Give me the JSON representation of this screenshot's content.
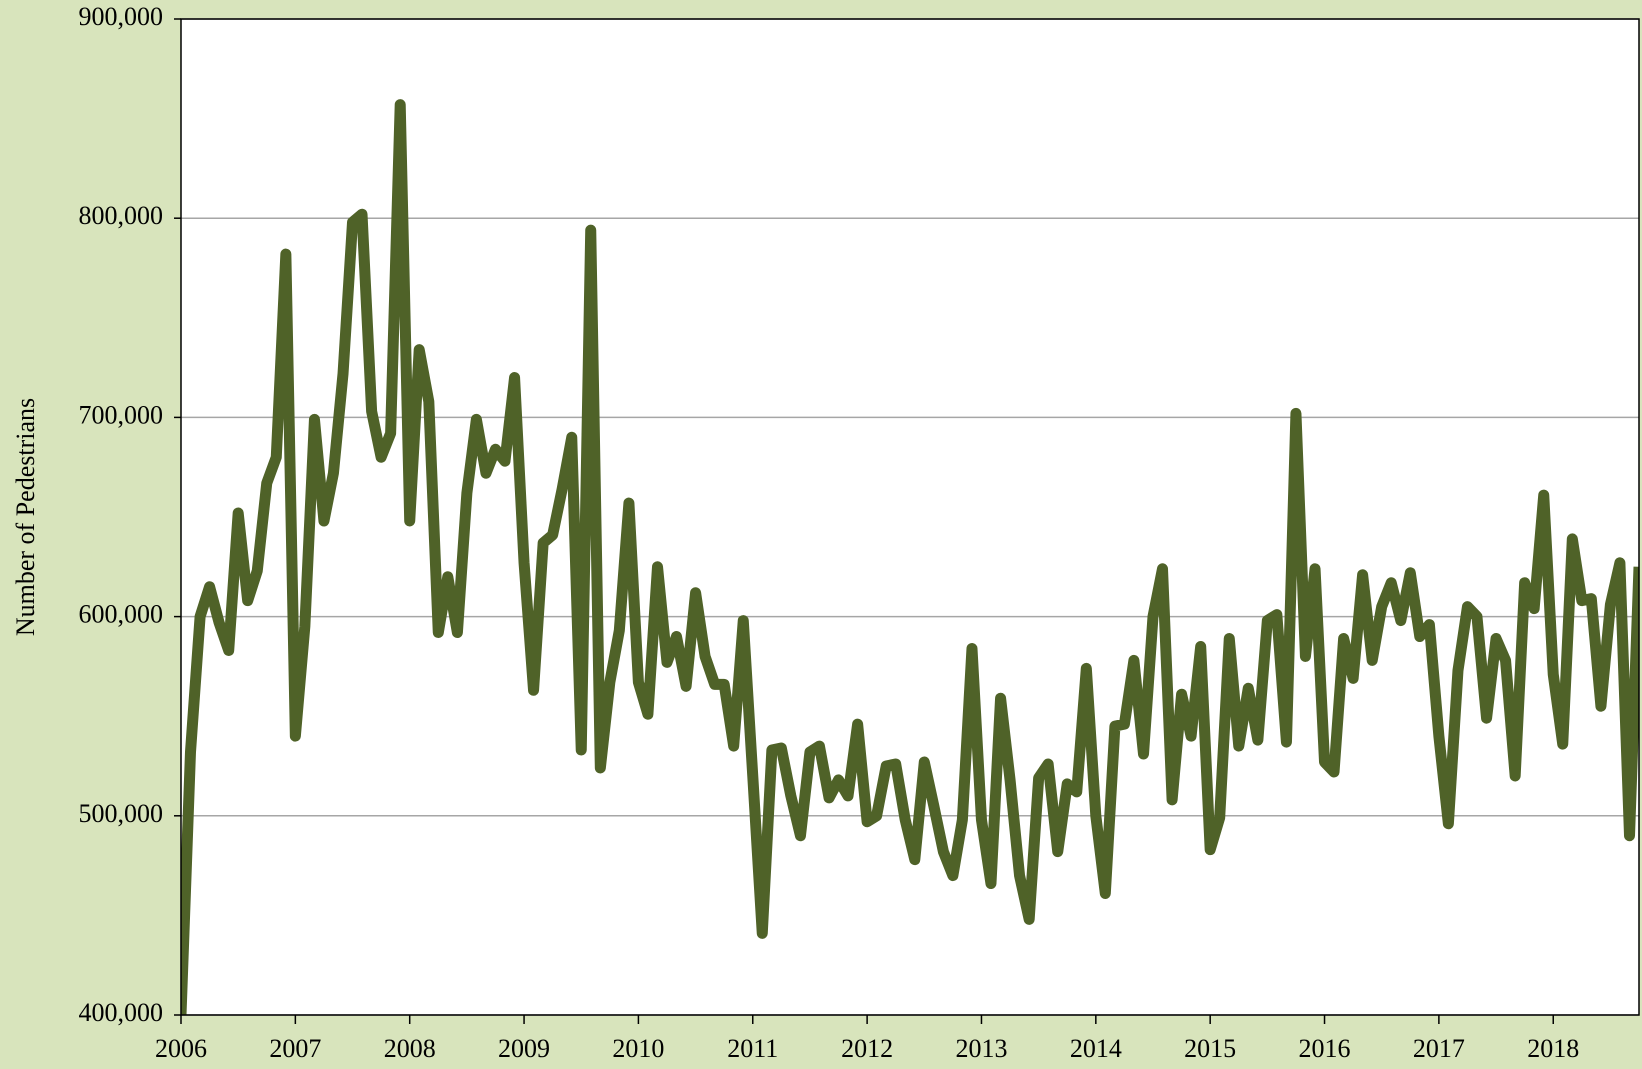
{
  "chart_data": {
    "type": "line",
    "ylabel": "Number of Pedestrians",
    "color": "#4f6228",
    "grid": true,
    "xlim": [
      2006,
      2018.75
    ],
    "xticks": [
      2006,
      2007,
      2008,
      2009,
      2010,
      2011,
      2012,
      2013,
      2014,
      2015,
      2016,
      2017,
      2018
    ],
    "ylim": [
      400000,
      900000
    ],
    "yticks": [
      {
        "value": 400000,
        "label": "400,000"
      },
      {
        "value": 500000,
        "label": "500,000"
      },
      {
        "value": 600000,
        "label": "600,000"
      },
      {
        "value": 700000,
        "label": "700,000"
      },
      {
        "value": 800000,
        "label": "800,000"
      },
      {
        "value": 900000,
        "label": "900,000"
      }
    ],
    "x": [
      2006.0,
      2006.083,
      2006.167,
      2006.25,
      2006.333,
      2006.417,
      2006.5,
      2006.583,
      2006.667,
      2006.75,
      2006.833,
      2006.917,
      2007.0,
      2007.083,
      2007.167,
      2007.25,
      2007.333,
      2007.417,
      2007.5,
      2007.583,
      2007.667,
      2007.75,
      2007.833,
      2007.917,
      2008.0,
      2008.083,
      2008.167,
      2008.25,
      2008.333,
      2008.417,
      2008.5,
      2008.583,
      2008.667,
      2008.75,
      2008.833,
      2008.917,
      2009.0,
      2009.083,
      2009.167,
      2009.25,
      2009.333,
      2009.417,
      2009.5,
      2009.583,
      2009.667,
      2009.75,
      2009.833,
      2009.917,
      2010.0,
      2010.083,
      2010.167,
      2010.25,
      2010.333,
      2010.417,
      2010.5,
      2010.583,
      2010.667,
      2010.75,
      2010.833,
      2010.917,
      2011.0,
      2011.083,
      2011.167,
      2011.25,
      2011.333,
      2011.417,
      2011.5,
      2011.583,
      2011.667,
      2011.75,
      2011.833,
      2011.917,
      2012.0,
      2012.083,
      2012.167,
      2012.25,
      2012.333,
      2012.417,
      2012.5,
      2012.583,
      2012.667,
      2012.75,
      2012.833,
      2012.917,
      2013.0,
      2013.083,
      2013.167,
      2013.25,
      2013.333,
      2013.417,
      2013.5,
      2013.583,
      2013.667,
      2013.75,
      2013.833,
      2013.917,
      2014.0,
      2014.083,
      2014.167,
      2014.25,
      2014.333,
      2014.417,
      2014.5,
      2014.583,
      2014.667,
      2014.75,
      2014.833,
      2014.917,
      2015.0,
      2015.083,
      2015.167,
      2015.25,
      2015.333,
      2015.417,
      2015.5,
      2015.583,
      2015.667,
      2015.75,
      2015.833,
      2015.917,
      2016.0,
      2016.083,
      2016.167,
      2016.25,
      2016.333,
      2016.417,
      2016.5,
      2016.583,
      2016.667,
      2016.75,
      2016.833,
      2016.917,
      2017.0,
      2017.083,
      2017.167,
      2017.25,
      2017.333,
      2017.417,
      2017.5,
      2017.583,
      2017.667,
      2017.75,
      2017.833,
      2017.917,
      2018.0,
      2018.083,
      2018.167,
      2018.25,
      2018.333,
      2018.417,
      2018.5,
      2018.583,
      2018.667,
      2018.75
    ],
    "values": [
      400000,
      532000,
      600000,
      615000,
      597000,
      583000,
      652000,
      608000,
      623000,
      667000,
      680000,
      782000,
      540000,
      595000,
      699000,
      648000,
      672000,
      722000,
      798000,
      802000,
      703000,
      680000,
      692000,
      857000,
      648000,
      734000,
      708000,
      592000,
      620000,
      592000,
      662000,
      699000,
      672000,
      684000,
      678000,
      720000,
      627000,
      563000,
      637000,
      641000,
      664000,
      690000,
      533000,
      794000,
      524000,
      567000,
      593000,
      657000,
      567000,
      551000,
      625000,
      577000,
      590000,
      565000,
      612000,
      580000,
      566000,
      566000,
      535000,
      598000,
      520000,
      441000,
      533000,
      534000,
      510000,
      490000,
      532000,
      535000,
      509000,
      518000,
      510000,
      546000,
      497000,
      500000,
      525000,
      526000,
      498000,
      478000,
      527000,
      505000,
      482000,
      470000,
      498000,
      584000,
      498000,
      466000,
      559000,
      518000,
      470000,
      448000,
      519000,
      526000,
      482000,
      516000,
      512000,
      574000,
      500000,
      461000,
      545000,
      546000,
      578000,
      531000,
      600000,
      624000,
      508000,
      561000,
      540000,
      585000,
      483000,
      499000,
      589000,
      535000,
      564000,
      538000,
      598000,
      601000,
      537000,
      702000,
      580000,
      624000,
      527000,
      522000,
      589000,
      569000,
      621000,
      578000,
      605000,
      617000,
      598000,
      622000,
      590000,
      596000,
      540000,
      496000,
      573000,
      605000,
      600000,
      549000,
      589000,
      578000,
      520000,
      617000,
      604000,
      661000,
      571000,
      536000,
      639000,
      608000,
      609000,
      555000,
      606000,
      627000,
      490000,
      625000
    ]
  }
}
